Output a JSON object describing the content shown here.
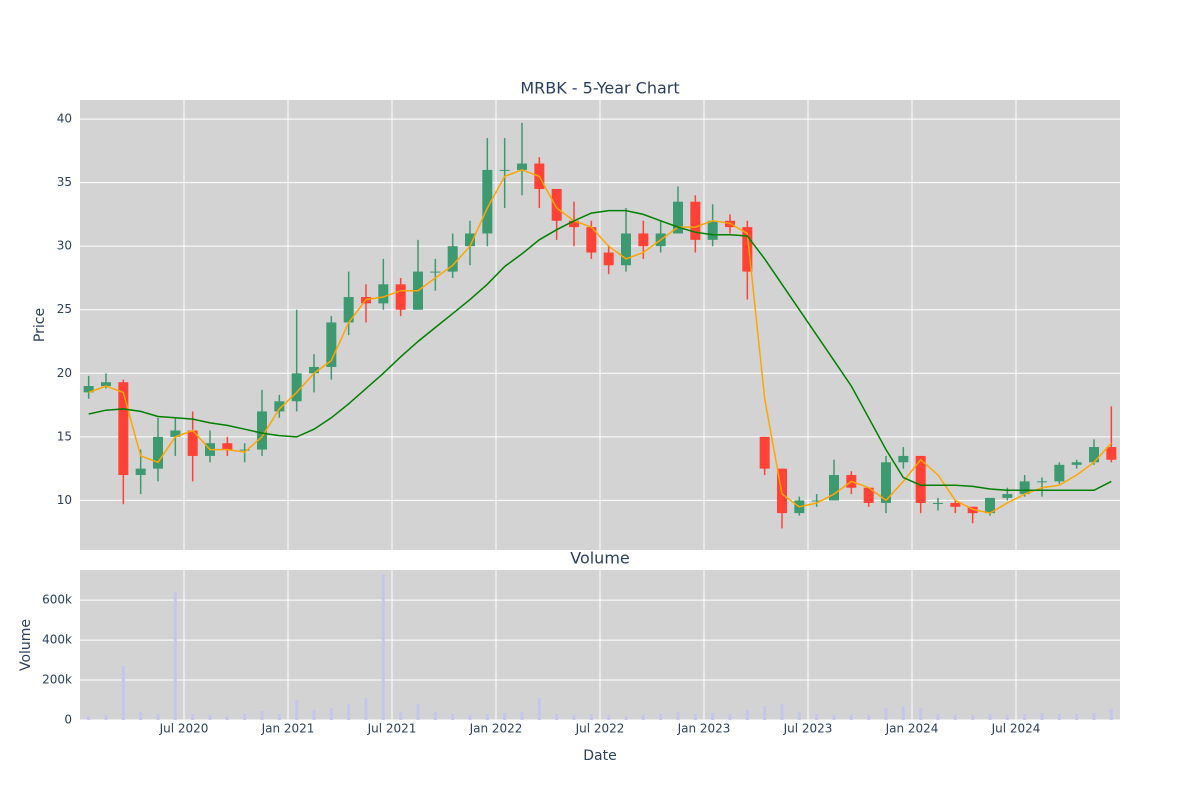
{
  "chart_data": [
    {
      "type": "candlestick",
      "title": "MRBK - 5-Year Chart",
      "y_label": "Price",
      "increasing_color": "#3d9970",
      "decreasing_color": "#ff4136",
      "x": [
        "2020-01",
        "2020-02",
        "2020-03",
        "2020-04",
        "2020-05",
        "2020-06",
        "2020-07",
        "2020-08",
        "2020-09",
        "2020-10",
        "2020-11",
        "2020-12",
        "2021-01",
        "2021-02",
        "2021-03",
        "2021-04",
        "2021-05",
        "2021-06",
        "2021-07",
        "2021-08",
        "2021-09",
        "2021-10",
        "2021-11",
        "2021-12",
        "2022-01",
        "2022-02",
        "2022-03",
        "2022-04",
        "2022-05",
        "2022-06",
        "2022-07",
        "2022-08",
        "2022-09",
        "2022-10",
        "2022-11",
        "2022-12",
        "2023-01",
        "2023-02",
        "2023-03",
        "2023-04",
        "2023-05",
        "2023-06",
        "2023-07",
        "2023-08",
        "2023-09",
        "2023-10",
        "2023-11",
        "2023-12",
        "2024-01",
        "2024-02",
        "2024-03",
        "2024-04",
        "2024-05",
        "2024-06",
        "2024-07",
        "2024-08",
        "2024-09",
        "2024-10",
        "2024-11",
        "2024-12"
      ],
      "open": [
        18.5,
        19,
        19.3,
        12,
        12.5,
        15,
        15.5,
        13.5,
        14.5,
        14,
        14,
        17,
        17.8,
        20,
        20.5,
        24,
        26,
        25.5,
        27,
        25,
        28,
        28,
        30,
        31,
        36,
        36,
        36.5,
        34.5,
        32,
        31.5,
        29.5,
        28.5,
        31,
        30,
        31,
        33.5,
        30.5,
        32,
        31.5,
        15,
        12.5,
        9,
        10,
        10,
        12,
        11,
        9.8,
        13,
        13.5,
        9.8,
        9.8,
        9.5,
        9,
        10.2,
        10.5,
        11.5,
        11.5,
        12.8,
        13,
        14.2
      ],
      "high": [
        19.8,
        20,
        19.5,
        14,
        16.5,
        16.5,
        17,
        15.5,
        15,
        14.5,
        18.7,
        18.3,
        25,
        21.5,
        24.5,
        28,
        27,
        29,
        27.5,
        30.5,
        29,
        31,
        32,
        38.5,
        38.5,
        39.7,
        37,
        34.5,
        33.5,
        32,
        30,
        33,
        32,
        32,
        34.7,
        34,
        33.3,
        32.5,
        32,
        15,
        12.5,
        10.3,
        10.5,
        13.2,
        12.3,
        11,
        13.5,
        14.2,
        13.5,
        10.2,
        10,
        9.5,
        10.2,
        11,
        12,
        11.8,
        13,
        13.2,
        14.8,
        17.4
      ],
      "low": [
        18,
        18.8,
        9.7,
        10.5,
        11.5,
        13.5,
        11.5,
        13,
        13.5,
        13,
        13.5,
        16.5,
        17,
        18.5,
        19.5,
        23,
        24,
        25,
        24.5,
        25,
        26.5,
        27.5,
        28.5,
        30,
        33,
        34,
        33,
        30.5,
        30,
        29,
        27.8,
        28,
        29,
        29.5,
        31,
        29.5,
        30,
        31,
        25.8,
        12,
        7.8,
        8.8,
        9.5,
        10,
        10.5,
        9.5,
        9,
        12.5,
        9,
        9.2,
        9,
        8.2,
        8.8,
        10,
        10.3,
        10.3,
        11.3,
        12.5,
        12.8,
        13
      ],
      "close": [
        19,
        19.3,
        12,
        12.5,
        15,
        15.5,
        13.5,
        14.5,
        14,
        14,
        17,
        17.8,
        20,
        20.5,
        24,
        26,
        25.5,
        27,
        25,
        28,
        28,
        30,
        31,
        36,
        36,
        36.5,
        34.5,
        32,
        31.5,
        29.5,
        28.5,
        31,
        30,
        31,
        33.5,
        30.5,
        32,
        31.5,
        28,
        12.5,
        9,
        10,
        10,
        12,
        11,
        9.8,
        13,
        13.5,
        9.8,
        9.8,
        9.5,
        9,
        10.2,
        10.5,
        11.5,
        11.5,
        12.8,
        13,
        14.2,
        13.2
      ],
      "lines": [
        {
          "color": "#ffa500",
          "values": [
            18.5,
            19,
            18.5,
            13.5,
            13,
            15,
            15.5,
            14,
            14,
            13.8,
            15,
            17.2,
            18.5,
            20,
            21,
            24,
            25.8,
            26,
            26.5,
            26.5,
            27.5,
            28.5,
            30,
            33,
            35.5,
            36,
            35.5,
            33,
            32,
            31.5,
            30,
            29,
            29.5,
            30.5,
            31.5,
            31.5,
            32,
            31.8,
            31,
            18,
            10.5,
            9.5,
            9.8,
            10.5,
            11.5,
            11,
            10,
            11.5,
            13.2,
            12,
            10,
            9.3,
            9,
            9.8,
            10.5,
            11,
            11.2,
            12,
            13,
            14.5
          ]
        },
        {
          "color": "#008000",
          "values": [
            16.8,
            17.1,
            17.2,
            17,
            16.6,
            16.5,
            16.4,
            16.1,
            15.9,
            15.6,
            15.3,
            15.1,
            15,
            15.6,
            16.5,
            17.6,
            18.8,
            20,
            21.3,
            22.5,
            23.6,
            24.7,
            25.8,
            27,
            28.4,
            29.4,
            30.5,
            31.3,
            32,
            32.6,
            32.8,
            32.8,
            32.5,
            32,
            31.5,
            31.1,
            30.9,
            30.9,
            30.8,
            29,
            27,
            25,
            23,
            21,
            19,
            16.5,
            14,
            11.8,
            11.2,
            11.2,
            11.2,
            11.1,
            10.9,
            10.8,
            10.8,
            10.8,
            10.8,
            10.8,
            10.8,
            11.5
          ]
        }
      ],
      "ylim": [
        6.1,
        41.5
      ],
      "yticks": [
        10,
        15,
        20,
        25,
        30,
        35,
        40
      ],
      "grid": true
    },
    {
      "type": "bar",
      "title": "Volume",
      "y_label": "Volume",
      "x_label": "Date",
      "color": "#c6c6ec",
      "values": [
        20000,
        25000,
        270000,
        40000,
        30000,
        640000,
        30000,
        25000,
        20000,
        30000,
        45000,
        30000,
        100000,
        50000,
        60000,
        80000,
        110000,
        730000,
        40000,
        80000,
        40000,
        30000,
        25000,
        30000,
        35000,
        40000,
        110000,
        30000,
        25000,
        30000,
        25000,
        20000,
        25000,
        30000,
        40000,
        30000,
        35000,
        30000,
        50000,
        70000,
        80000,
        40000,
        30000,
        25000,
        25000,
        25000,
        60000,
        70000,
        60000,
        30000,
        25000,
        25000,
        30000,
        25000,
        30000,
        35000,
        30000,
        30000,
        35000,
        55000
      ],
      "ylim": [
        0,
        751000
      ],
      "yticks": [
        0,
        {
          "value": 200000,
          "label": "200k"
        },
        {
          "value": 400000,
          "label": "400k"
        },
        {
          "value": 600000,
          "label": "600k"
        }
      ],
      "xlim": [
        "2020-01",
        "2025-01"
      ],
      "xticks": [
        {
          "value": "2020-07",
          "label": "Jul 2020"
        },
        {
          "value": "2021-01",
          "label": "Jan 2021"
        },
        {
          "value": "2021-07",
          "label": "Jul 2021"
        },
        {
          "value": "2022-01",
          "label": "Jan 2022"
        },
        {
          "value": "2022-07",
          "label": "Jul 2022"
        },
        {
          "value": "2023-01",
          "label": "Jan 2023"
        },
        {
          "value": "2023-07",
          "label": "Jul 2023"
        },
        {
          "value": "2024-01",
          "label": "Jan 2024"
        },
        {
          "value": "2024-07",
          "label": "Jul 2024"
        }
      ],
      "grid": true
    }
  ]
}
